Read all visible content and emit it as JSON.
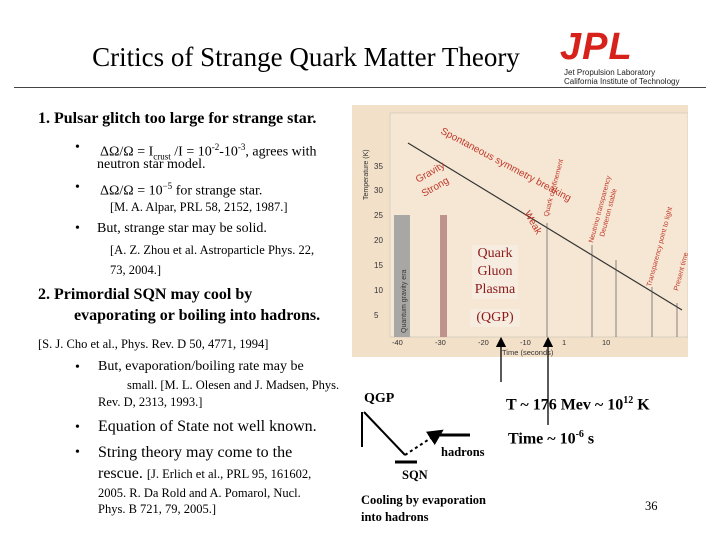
{
  "title": "Critics of Strange Quark Matter Theory",
  "logo": {
    "main": "JPL",
    "line1": "Jet Propulsion Laboratory",
    "line2": "California Institute of Technology"
  },
  "item1": {
    "heading": "1.  Pulsar glitch too large for strange star.",
    "b1": "ΔΩ/Ω = I",
    "b1_sub": "crust",
    "b1_rest": " /I = 10",
    "b1_sup1": "-2",
    "b1_mid": "-10",
    "b1_sup2": "-3",
    "b1_end": ", agrees with",
    "b1_line2": "neutron star model.",
    "b2": "ΔΩ/Ω = 10",
    "b2_sup": "−5",
    "b2_end": " for strange star.",
    "ref1": "[M. A. Alpar, PRL 58, 2152, 1987.]",
    "b3": "But, strange star may be solid.",
    "ref2_l1": "[A. Z. Zhou et al. Astroparticle Phys. 22,",
    "ref2_l2": "73, 2004.]"
  },
  "item2": {
    "heading_l1": "2.  Primordial SQN may cool by",
    "heading_l2": "evaporating or boiling into hadrons.",
    "ref1": "[S. J. Cho et al., Phys. Rev. D 50, 4771, 1994]",
    "b1_l1": "But, evaporation/boiling rate may be",
    "b1_l2": "small.  [M. L. Olesen and J. Madsen, Phys.",
    "b1_l3": "Rev. D, 2313, 1993.]",
    "b2": "Equation of State not well known.",
    "b3_l1": "String theory may come to the",
    "b3_l2a": "rescue. ",
    "b3_l2b": "[J. Erlich et al., PRL 95, 161602,",
    "b3_l3": "2005.  R. Da Rold and A. Pomarol, Nucl.",
    "b3_l4": "Phys. B 721, 79, 2005.]"
  },
  "figure": {
    "y_axis_title": "Temperature (K)",
    "y_ticks": [
      "35",
      "30",
      "25",
      "20",
      "15",
      "10",
      "5"
    ],
    "x_axis_title": "Time (seconds)",
    "x_ticks": [
      "-40",
      "-30",
      "-20",
      "-10",
      "1",
      "10"
    ],
    "band_label": "Quantum gravity era",
    "diag_labels": [
      "Gravity",
      "Strong",
      "Spontaneous symmetry breaking",
      "Weak",
      "Quark confinement",
      "Neutrino transparency",
      "Deuteron stable",
      "Transparency point to light",
      "Present time"
    ],
    "qgp_l1": "Quark",
    "qgp_l2": "Gluon",
    "qgp_l3": "Plasma",
    "qgp_paren": "(QGP)"
  },
  "annotations": {
    "temp_main": "T ~ 176 Mev ~ 10",
    "temp_sup": "12",
    "temp_unit": " K",
    "time_main": "Time ~ 10",
    "time_sup": "-6",
    "time_unit": " s"
  },
  "diagram": {
    "qgp": "QGP",
    "hadrons": "hadrons",
    "sqn": "SQN",
    "caption_l1": "Cooling by evaporation",
    "caption_l2": "into hadrons"
  },
  "page_number": "36",
  "colors": {
    "logo_red": "#d6221b",
    "figure_bg": "#f3e0c9",
    "diag_red": "#c0392b",
    "qgp_text": "#8b1a1a"
  }
}
